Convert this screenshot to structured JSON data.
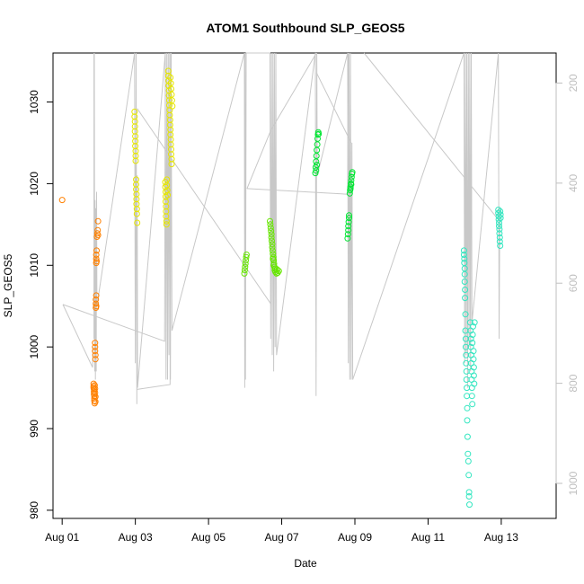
{
  "chart_data": {
    "type": "scatter",
    "title": "ATOM1 Southbound SLP_GEOS5",
    "xlabel": "Date",
    "ylabel": "SLP_GEOS5",
    "x_unit": "days since Aug 01",
    "xlim": [
      -0.25,
      13.5
    ],
    "ylim": [
      979,
      1036
    ],
    "x_ticks": [
      {
        "value": 0,
        "label": "Aug 01"
      },
      {
        "value": 2,
        "label": "Aug 03"
      },
      {
        "value": 4,
        "label": "Aug 05"
      },
      {
        "value": 6,
        "label": "Aug 07"
      },
      {
        "value": 8,
        "label": "Aug 09"
      },
      {
        "value": 10,
        "label": "Aug 11"
      },
      {
        "value": 12,
        "label": "Aug 13"
      }
    ],
    "y_ticks": [
      980,
      990,
      1000,
      1010,
      1020,
      1030
    ],
    "right_axis": {
      "label": "",
      "ylim": [
        1070,
        140
      ],
      "ticks": [
        200,
        400,
        600,
        800,
        1000
      ],
      "color": "#bfbfbf"
    },
    "grid": false,
    "legend": "none",
    "line_color": "#c8c8c8",
    "series": [
      {
        "color": "#ff8000",
        "points": [
          [
            0,
            1018
          ],
          [
            0.86,
            995.5
          ],
          [
            0.86,
            995.2
          ],
          [
            0.86,
            995.0
          ],
          [
            0.87,
            994.8
          ],
          [
            0.87,
            994.5
          ],
          [
            0.87,
            994.2
          ],
          [
            0.88,
            994.0
          ],
          [
            0.88,
            993.7
          ],
          [
            0.88,
            993.4
          ],
          [
            0.89,
            993.1
          ],
          [
            0.89,
            995.3
          ],
          [
            0.9,
            994.9
          ],
          [
            0.9,
            994.4
          ],
          [
            0.91,
            993.9
          ],
          [
            0.91,
            993.3
          ],
          [
            0.9,
            999.5
          ],
          [
            0.9,
            1000.0
          ],
          [
            0.9,
            1000.5
          ],
          [
            0.91,
            999.0
          ],
          [
            0.91,
            998.5
          ],
          [
            0.92,
            1004.8
          ],
          [
            0.92,
            1005.3
          ],
          [
            0.92,
            1005.8
          ],
          [
            0.93,
            1006.3
          ],
          [
            0.93,
            1005.0
          ],
          [
            0.93,
            1010.3
          ],
          [
            0.93,
            1010.8
          ],
          [
            0.93,
            1011.3
          ],
          [
            0.94,
            1011.8
          ],
          [
            0.94,
            1010.5
          ],
          [
            0.95,
            1013.5
          ],
          [
            0.96,
            1013.9
          ],
          [
            0.97,
            1014.3
          ],
          [
            0.98,
            1013.7
          ],
          [
            0.98,
            1015.4
          ]
        ]
      },
      {
        "color": "#e6e600",
        "points": [
          [
            1.98,
            1028.8
          ],
          [
            1.98,
            1028.2
          ],
          [
            1.99,
            1027.6
          ],
          [
            1.99,
            1027.0
          ],
          [
            1.99,
            1026.4
          ],
          [
            2.0,
            1025.8
          ],
          [
            2.0,
            1025.2
          ],
          [
            2.0,
            1024.6
          ],
          [
            2.01,
            1024.0
          ],
          [
            2.01,
            1023.4
          ],
          [
            2.01,
            1022.8
          ],
          [
            2.02,
            1020.5
          ],
          [
            2.02,
            1019.9
          ],
          [
            2.02,
            1019.3
          ],
          [
            2.03,
            1018.7
          ],
          [
            2.03,
            1018.1
          ],
          [
            2.03,
            1017.5
          ],
          [
            2.04,
            1016.9
          ],
          [
            2.04,
            1016.3
          ],
          [
            2.05,
            1015.2
          ],
          [
            2.82,
            1020.2
          ],
          [
            2.82,
            1019.6
          ],
          [
            2.83,
            1019.0
          ],
          [
            2.83,
            1018.4
          ],
          [
            2.83,
            1017.8
          ],
          [
            2.84,
            1017.2
          ],
          [
            2.84,
            1016.6
          ],
          [
            2.84,
            1016.0
          ],
          [
            2.85,
            1015.4
          ],
          [
            2.85,
            1015.0
          ],
          [
            2.86,
            1020.5
          ],
          [
            2.86,
            1019.8
          ],
          [
            2.87,
            1019.2
          ],
          [
            2.88,
            1018.6
          ],
          [
            2.9,
            1033.8
          ],
          [
            2.9,
            1033.2
          ],
          [
            2.91,
            1032.6
          ],
          [
            2.91,
            1032.0
          ],
          [
            2.92,
            1031.4
          ],
          [
            2.92,
            1030.8
          ],
          [
            2.93,
            1030.2
          ],
          [
            2.93,
            1029.6
          ],
          [
            2.94,
            1029.0
          ],
          [
            2.94,
            1028.4
          ],
          [
            2.95,
            1027.8
          ],
          [
            2.95,
            1027.2
          ],
          [
            2.96,
            1026.6
          ],
          [
            2.96,
            1026.0
          ],
          [
            2.97,
            1025.4
          ],
          [
            2.97,
            1024.8
          ],
          [
            2.98,
            1024.2
          ],
          [
            2.98,
            1023.6
          ],
          [
            2.99,
            1023.0
          ],
          [
            2.99,
            1022.4
          ],
          [
            2.96,
            1033.0
          ],
          [
            2.97,
            1032.3
          ],
          [
            2.98,
            1031.6
          ],
          [
            2.99,
            1030.9
          ],
          [
            3.0,
            1030.2
          ],
          [
            3.01,
            1029.5
          ]
        ]
      },
      {
        "color": "#66e600",
        "points": [
          [
            4.98,
            1009.0
          ],
          [
            4.99,
            1009.4
          ],
          [
            5.0,
            1009.8
          ],
          [
            5.01,
            1010.2
          ],
          [
            5.02,
            1010.6
          ],
          [
            5.03,
            1011.0
          ],
          [
            5.04,
            1011.3
          ],
          [
            5.68,
            1015.4
          ],
          [
            5.69,
            1015.0
          ],
          [
            5.7,
            1014.6
          ],
          [
            5.71,
            1014.2
          ],
          [
            5.72,
            1013.8
          ],
          [
            5.72,
            1013.4
          ],
          [
            5.73,
            1013.0
          ],
          [
            5.74,
            1012.6
          ],
          [
            5.74,
            1012.2
          ],
          [
            5.75,
            1011.8
          ],
          [
            5.76,
            1011.4
          ],
          [
            5.77,
            1011.0
          ],
          [
            5.78,
            1010.6
          ],
          [
            5.79,
            1010.2
          ],
          [
            5.8,
            1009.8
          ],
          [
            5.81,
            1009.4
          ],
          [
            5.83,
            1009.2
          ],
          [
            5.86,
            1009.0
          ],
          [
            5.89,
            1009.1
          ],
          [
            5.92,
            1009.3
          ],
          [
            5.76,
            1010.8
          ],
          [
            5.78,
            1010.0
          ],
          [
            5.82,
            1009.6
          ],
          [
            5.87,
            1009.5
          ]
        ]
      },
      {
        "color": "#00e633",
        "points": [
          [
            6.92,
            1021.3
          ],
          [
            6.93,
            1022.0
          ],
          [
            6.94,
            1022.7
          ],
          [
            6.95,
            1023.4
          ],
          [
            6.96,
            1024.1
          ],
          [
            6.97,
            1024.8
          ],
          [
            6.98,
            1025.5
          ],
          [
            6.99,
            1026.0
          ],
          [
            7.0,
            1026.3
          ],
          [
            7.01,
            1026.1
          ],
          [
            6.94,
            1021.6
          ],
          [
            6.96,
            1022.3
          ],
          [
            7.8,
            1013.3
          ],
          [
            7.81,
            1013.8
          ],
          [
            7.82,
            1014.3
          ],
          [
            7.82,
            1014.8
          ],
          [
            7.83,
            1015.3
          ],
          [
            7.84,
            1015.8
          ],
          [
            7.84,
            1016.1
          ],
          [
            7.86,
            1018.8
          ],
          [
            7.87,
            1019.2
          ],
          [
            7.88,
            1019.6
          ],
          [
            7.89,
            1020.0
          ],
          [
            7.9,
            1020.4
          ],
          [
            7.91,
            1020.8
          ],
          [
            7.92,
            1021.2
          ],
          [
            7.93,
            1021.4
          ],
          [
            7.88,
            1019.4
          ],
          [
            7.9,
            1019.9
          ]
        ]
      },
      {
        "color": "#33e6c0",
        "points": [
          [
            10.98,
            1011.8
          ],
          [
            10.98,
            1011.3
          ],
          [
            10.99,
            1010.8
          ],
          [
            10.99,
            1010.3
          ],
          [
            11.0,
            1009.6
          ],
          [
            11.0,
            1008.9
          ],
          [
            11.0,
            1008.0
          ],
          [
            11.01,
            1007.0
          ],
          [
            11.01,
            1006.0
          ],
          [
            11.02,
            1004.0
          ],
          [
            11.02,
            1002.0
          ],
          [
            11.03,
            1001.0
          ],
          [
            11.03,
            1000.0
          ],
          [
            11.04,
            999.0
          ],
          [
            11.04,
            998.0
          ],
          [
            11.05,
            997.0
          ],
          [
            11.05,
            996.0
          ],
          [
            11.06,
            995.0
          ],
          [
            11.06,
            994.0
          ],
          [
            11.07,
            992.5
          ],
          [
            11.07,
            991.0
          ],
          [
            11.08,
            989.0
          ],
          [
            11.09,
            986.9
          ],
          [
            11.1,
            986.0
          ],
          [
            11.11,
            984.3
          ],
          [
            11.12,
            982.2
          ],
          [
            11.12,
            981.7
          ],
          [
            11.13,
            980.7
          ],
          [
            11.15,
            1003.0
          ],
          [
            11.16,
            1002.0
          ],
          [
            11.17,
            1001.0
          ],
          [
            11.17,
            1000.0
          ],
          [
            11.18,
            999.0
          ],
          [
            11.18,
            998.0
          ],
          [
            11.19,
            997.0
          ],
          [
            11.19,
            996.0
          ],
          [
            11.2,
            995.0
          ],
          [
            11.2,
            994.0
          ],
          [
            11.21,
            993.0
          ],
          [
            11.21,
            1000.5
          ],
          [
            11.22,
            1001.5
          ],
          [
            11.23,
            1002.5
          ],
          [
            11.24,
            999.5
          ],
          [
            11.24,
            998.5
          ],
          [
            11.25,
            997.5
          ],
          [
            11.25,
            996.5
          ],
          [
            11.26,
            995.5
          ],
          [
            11.27,
            1003.0
          ],
          [
            11.92,
            1016.8
          ],
          [
            11.92,
            1016.4
          ],
          [
            11.93,
            1016.0
          ],
          [
            11.93,
            1015.6
          ],
          [
            11.94,
            1015.2
          ],
          [
            11.94,
            1014.8
          ],
          [
            11.95,
            1014.4
          ],
          [
            11.95,
            1013.9
          ],
          [
            11.96,
            1013.4
          ],
          [
            11.96,
            1012.9
          ],
          [
            11.97,
            1012.4
          ],
          [
            11.97,
            1016.6
          ],
          [
            11.98,
            1016.2
          ],
          [
            11.98,
            1015.8
          ]
        ]
      }
    ],
    "profile_lines": [
      [
        0.87,
        1036
      ],
      [
        0.87,
        1001
      ],
      [
        0.88,
        1036
      ],
      [
        0.89,
        997
      ],
      [
        0.9,
        1018
      ],
      [
        0.91,
        996
      ],
      [
        0.92,
        1017
      ],
      [
        0.93,
        997
      ],
      [
        0.94,
        1019
      ],
      [
        0.95,
        1005
      ],
      [
        1.98,
        1036
      ],
      [
        2.0,
        998
      ],
      [
        2.02,
        1036
      ],
      [
        2.04,
        993
      ],
      [
        2.05,
        1021
      ],
      [
        2.06,
        995
      ],
      [
        2.82,
        1036
      ],
      [
        2.84,
        996
      ],
      [
        2.86,
        1036
      ],
      [
        2.88,
        996
      ],
      [
        2.9,
        1036
      ],
      [
        2.92,
        999
      ],
      [
        2.94,
        1036
      ],
      [
        2.96,
        996
      ],
      [
        2.98,
        1036
      ],
      [
        3.0,
        1002
      ],
      [
        4.98,
        1036
      ],
      [
        4.99,
        995
      ],
      [
        5.0,
        1036
      ],
      [
        5.01,
        996
      ],
      [
        5.02,
        1016
      ],
      [
        5.03,
        1036
      ],
      [
        5.68,
        1036
      ],
      [
        5.7,
        1001
      ],
      [
        5.72,
        1036
      ],
      [
        5.74,
        999
      ],
      [
        5.76,
        1036
      ],
      [
        5.78,
        997
      ],
      [
        5.8,
        1036
      ],
      [
        5.82,
        1000
      ],
      [
        5.84,
        1036
      ],
      [
        5.86,
        999
      ],
      [
        6.92,
        1036
      ],
      [
        6.94,
        994
      ],
      [
        6.96,
        1036
      ],
      [
        6.97,
        1021
      ],
      [
        7.8,
        1036
      ],
      [
        7.82,
        998
      ],
      [
        7.84,
        1036
      ],
      [
        7.86,
        996
      ],
      [
        7.88,
        1036
      ],
      [
        7.9,
        996
      ],
      [
        7.92,
        1025
      ],
      [
        7.94,
        996
      ],
      [
        10.98,
        1036
      ],
      [
        11.0,
        998
      ],
      [
        11.02,
        1036
      ],
      [
        11.04,
        999
      ],
      [
        11.06,
        1036
      ],
      [
        11.08,
        995
      ],
      [
        11.1,
        1036
      ],
      [
        11.12,
        1000
      ],
      [
        11.14,
        1036
      ],
      [
        11.16,
        997
      ],
      [
        11.18,
        1036
      ],
      [
        11.2,
        1003
      ],
      [
        11.92,
        1036
      ],
      [
        11.94,
        1001
      ],
      [
        11.96,
        1017
      ]
    ],
    "transit_lines": [
      [
        [
          0.02,
          1005.2
        ],
        [
          0.83,
          997.5
        ],
        [
          0.84,
          1000
        ]
      ],
      [
        [
          0.02,
          1005.2
        ],
        [
          2.8,
          1000.7
        ],
        [
          2.82,
          1036
        ]
      ],
      [
        [
          2.05,
          994.8
        ],
        [
          2.95,
          995.4
        ],
        [
          2.97,
          1036
        ]
      ],
      [
        [
          2.05,
          1029.2
        ],
        [
          5.7,
          1005.3
        ],
        [
          5.72,
          1036
        ]
      ],
      [
        [
          5.05,
          1019.4
        ],
        [
          5.7,
          1026.5
        ],
        [
          6.95,
          1036
        ]
      ],
      [
        [
          5.05,
          1019.4
        ],
        [
          7.8,
          1018.7
        ],
        [
          7.82,
          1036
        ]
      ],
      [
        [
          6.95,
          1033.6
        ],
        [
          7.9,
          1025.0
        ]
      ],
      [
        [
          8.25,
          1036
        ],
        [
          11.92,
          1015.6
        ]
      ]
    ]
  }
}
